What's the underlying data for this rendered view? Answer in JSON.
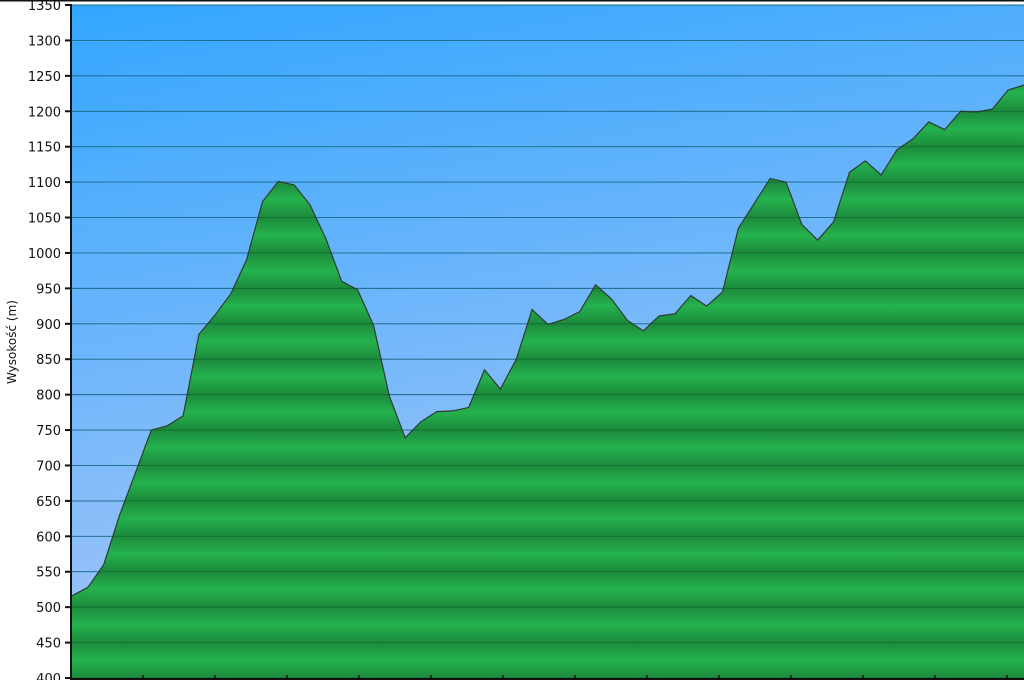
{
  "chart_data": {
    "type": "area",
    "title": "",
    "xlabel": "",
    "ylabel": "Wysokość (m)",
    "ylim": [
      400,
      1350
    ],
    "yticks": [
      "400",
      "450",
      "500",
      "550",
      "600",
      "650",
      "700",
      "750",
      "800",
      "850",
      "900",
      "950",
      "1000",
      "1050",
      "1100",
      "1150",
      "1200",
      "1250",
      "1300",
      "1350"
    ],
    "grid": true,
    "legend": "none",
    "colors": {
      "sky_top": "#33a6ff",
      "sky_bottom": "#a9c6f7",
      "fill": "#22a84a",
      "fill_dark": "#1a7a35",
      "outline": "#2d3b33"
    },
    "series": [
      {
        "values": [
          516,
          528,
          560,
          630,
          690,
          750,
          756,
          770,
          885,
          912,
          942,
          990,
          1072,
          1101,
          1096,
          1068,
          1020,
          960,
          948,
          898,
          798,
          739,
          762,
          776,
          777,
          782,
          835,
          808,
          850,
          920,
          899,
          906,
          917,
          955,
          935,
          905,
          890,
          911,
          914,
          940,
          925,
          945,
          1035,
          1070,
          1105,
          1100,
          1040,
          1018,
          1044,
          1114,
          1130,
          1110,
          1146,
          1161,
          1185,
          1174,
          1200,
          1199,
          1203,
          1230,
          1237
        ]
      }
    ]
  }
}
